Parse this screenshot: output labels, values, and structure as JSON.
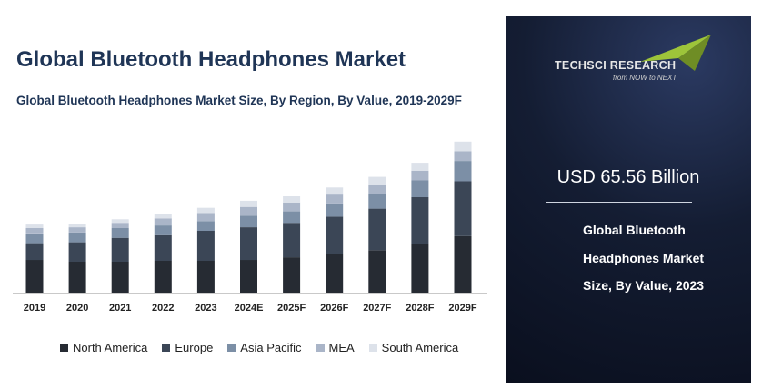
{
  "title": "Global Bluetooth Headphones Market",
  "subtitle": "Global Bluetooth Headphones Market Size, By Region, By Value, 2019-2029F",
  "brand": {
    "name": "TECHSCI RESEARCH",
    "tagline": "from NOW to NEXT",
    "accent": "#9dc43a"
  },
  "highlight": {
    "value": "USD 65.56 Billion",
    "description": "Global Bluetooth Headphones Market Size, By Value, 2023"
  },
  "colors": {
    "panel_bg": "#0f1628",
    "title": "#1f3556"
  },
  "chart_data": {
    "type": "bar",
    "stacked": true,
    "categories": [
      "2019",
      "2020",
      "2021",
      "2022",
      "2023",
      "2024E",
      "2025F",
      "2026F",
      "2027F",
      "2028F",
      "2029F"
    ],
    "series": [
      {
        "name": "North America",
        "color": "#262b33",
        "values": [
          37,
          35,
          35,
          36,
          36,
          37,
          40,
          44,
          48,
          55,
          64
        ]
      },
      {
        "name": "Europe",
        "color": "#3b4656",
        "values": [
          19,
          22,
          27,
          29,
          34,
          37,
          39,
          42,
          47,
          53,
          62
        ]
      },
      {
        "name": "Asia Pacific",
        "color": "#7c8fa6",
        "values": [
          11,
          11,
          11,
          11,
          11,
          13,
          13,
          15,
          17,
          19,
          23
        ]
      },
      {
        "name": "MEA",
        "color": "#aab5c8",
        "values": [
          6,
          6,
          6,
          8,
          9,
          10,
          10,
          10,
          10,
          11,
          11
        ]
      },
      {
        "name": "South America",
        "color": "#dde2ea",
        "values": [
          4,
          4,
          4,
          5,
          6,
          7,
          7,
          8,
          9,
          9,
          11
        ]
      }
    ],
    "ylim": [
      0,
      180
    ],
    "grid": false,
    "legend": "bottom"
  }
}
